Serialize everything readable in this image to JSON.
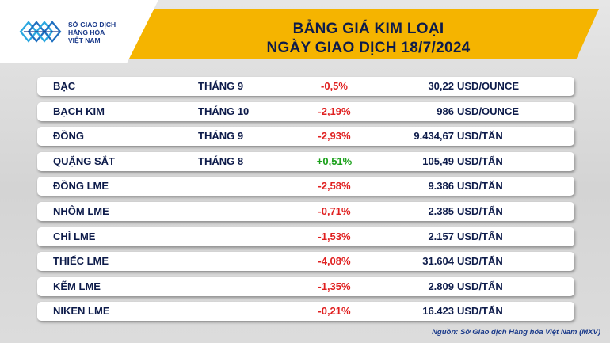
{
  "logo": {
    "line1": "SỞ GIAO DỊCH",
    "line2": "HÀNG HÓA",
    "line3": "VIỆT NAM"
  },
  "title": {
    "line1": "BẢNG GIÁ KIM LOẠI",
    "line2": "NGÀY GIAO DỊCH 18/7/2024"
  },
  "rows": [
    {
      "name": "BẠC",
      "month": "THÁNG 9",
      "change": "-0,5%",
      "direction": "down",
      "price": "30,22",
      "unit": "USD/OUNCE"
    },
    {
      "name": "BẠCH KIM",
      "month": "THÁNG 10",
      "change": "-2,19%",
      "direction": "down",
      "price": "986",
      "unit": "USD/OUNCE"
    },
    {
      "name": "ĐỒNG",
      "month": "THÁNG 9",
      "change": "-2,93%",
      "direction": "down",
      "price": "9.434,67",
      "unit": "USD/TẤN"
    },
    {
      "name": "QUẶNG SẮT",
      "month": "THÁNG 8",
      "change": "+0,51%",
      "direction": "up",
      "price": "105,49",
      "unit": "USD/TẤN"
    },
    {
      "name": "ĐỒNG LME",
      "month": "",
      "change": "-2,58%",
      "direction": "down",
      "price": "9.386",
      "unit": "USD/TẤN"
    },
    {
      "name": "NHÔM LME",
      "month": "",
      "change": "-0,71%",
      "direction": "down",
      "price": "2.385",
      "unit": "USD/TẤN"
    },
    {
      "name": "CHÌ LME",
      "month": "",
      "change": "-1,53%",
      "direction": "down",
      "price": "2.157",
      "unit": "USD/TẤN"
    },
    {
      "name": "THIẾC LME",
      "month": "",
      "change": "-4,08%",
      "direction": "down",
      "price": "31.604",
      "unit": "USD/TẤN"
    },
    {
      "name": "KẼM LME",
      "month": "",
      "change": "-1,35%",
      "direction": "down",
      "price": "2.809",
      "unit": "USD/TẤN"
    },
    {
      "name": "NIKEN LME",
      "month": "",
      "change": "-0,21%",
      "direction": "down",
      "price": "16.423",
      "unit": "USD/TẤN"
    }
  ],
  "colors": {
    "header": "#f5b400",
    "negative": "#e02020",
    "positive": "#1aa01a",
    "text": "#0d1b4a"
  },
  "source": "Nguồn: Sở Giao dịch Hàng hóa Việt Nam (MXV)"
}
